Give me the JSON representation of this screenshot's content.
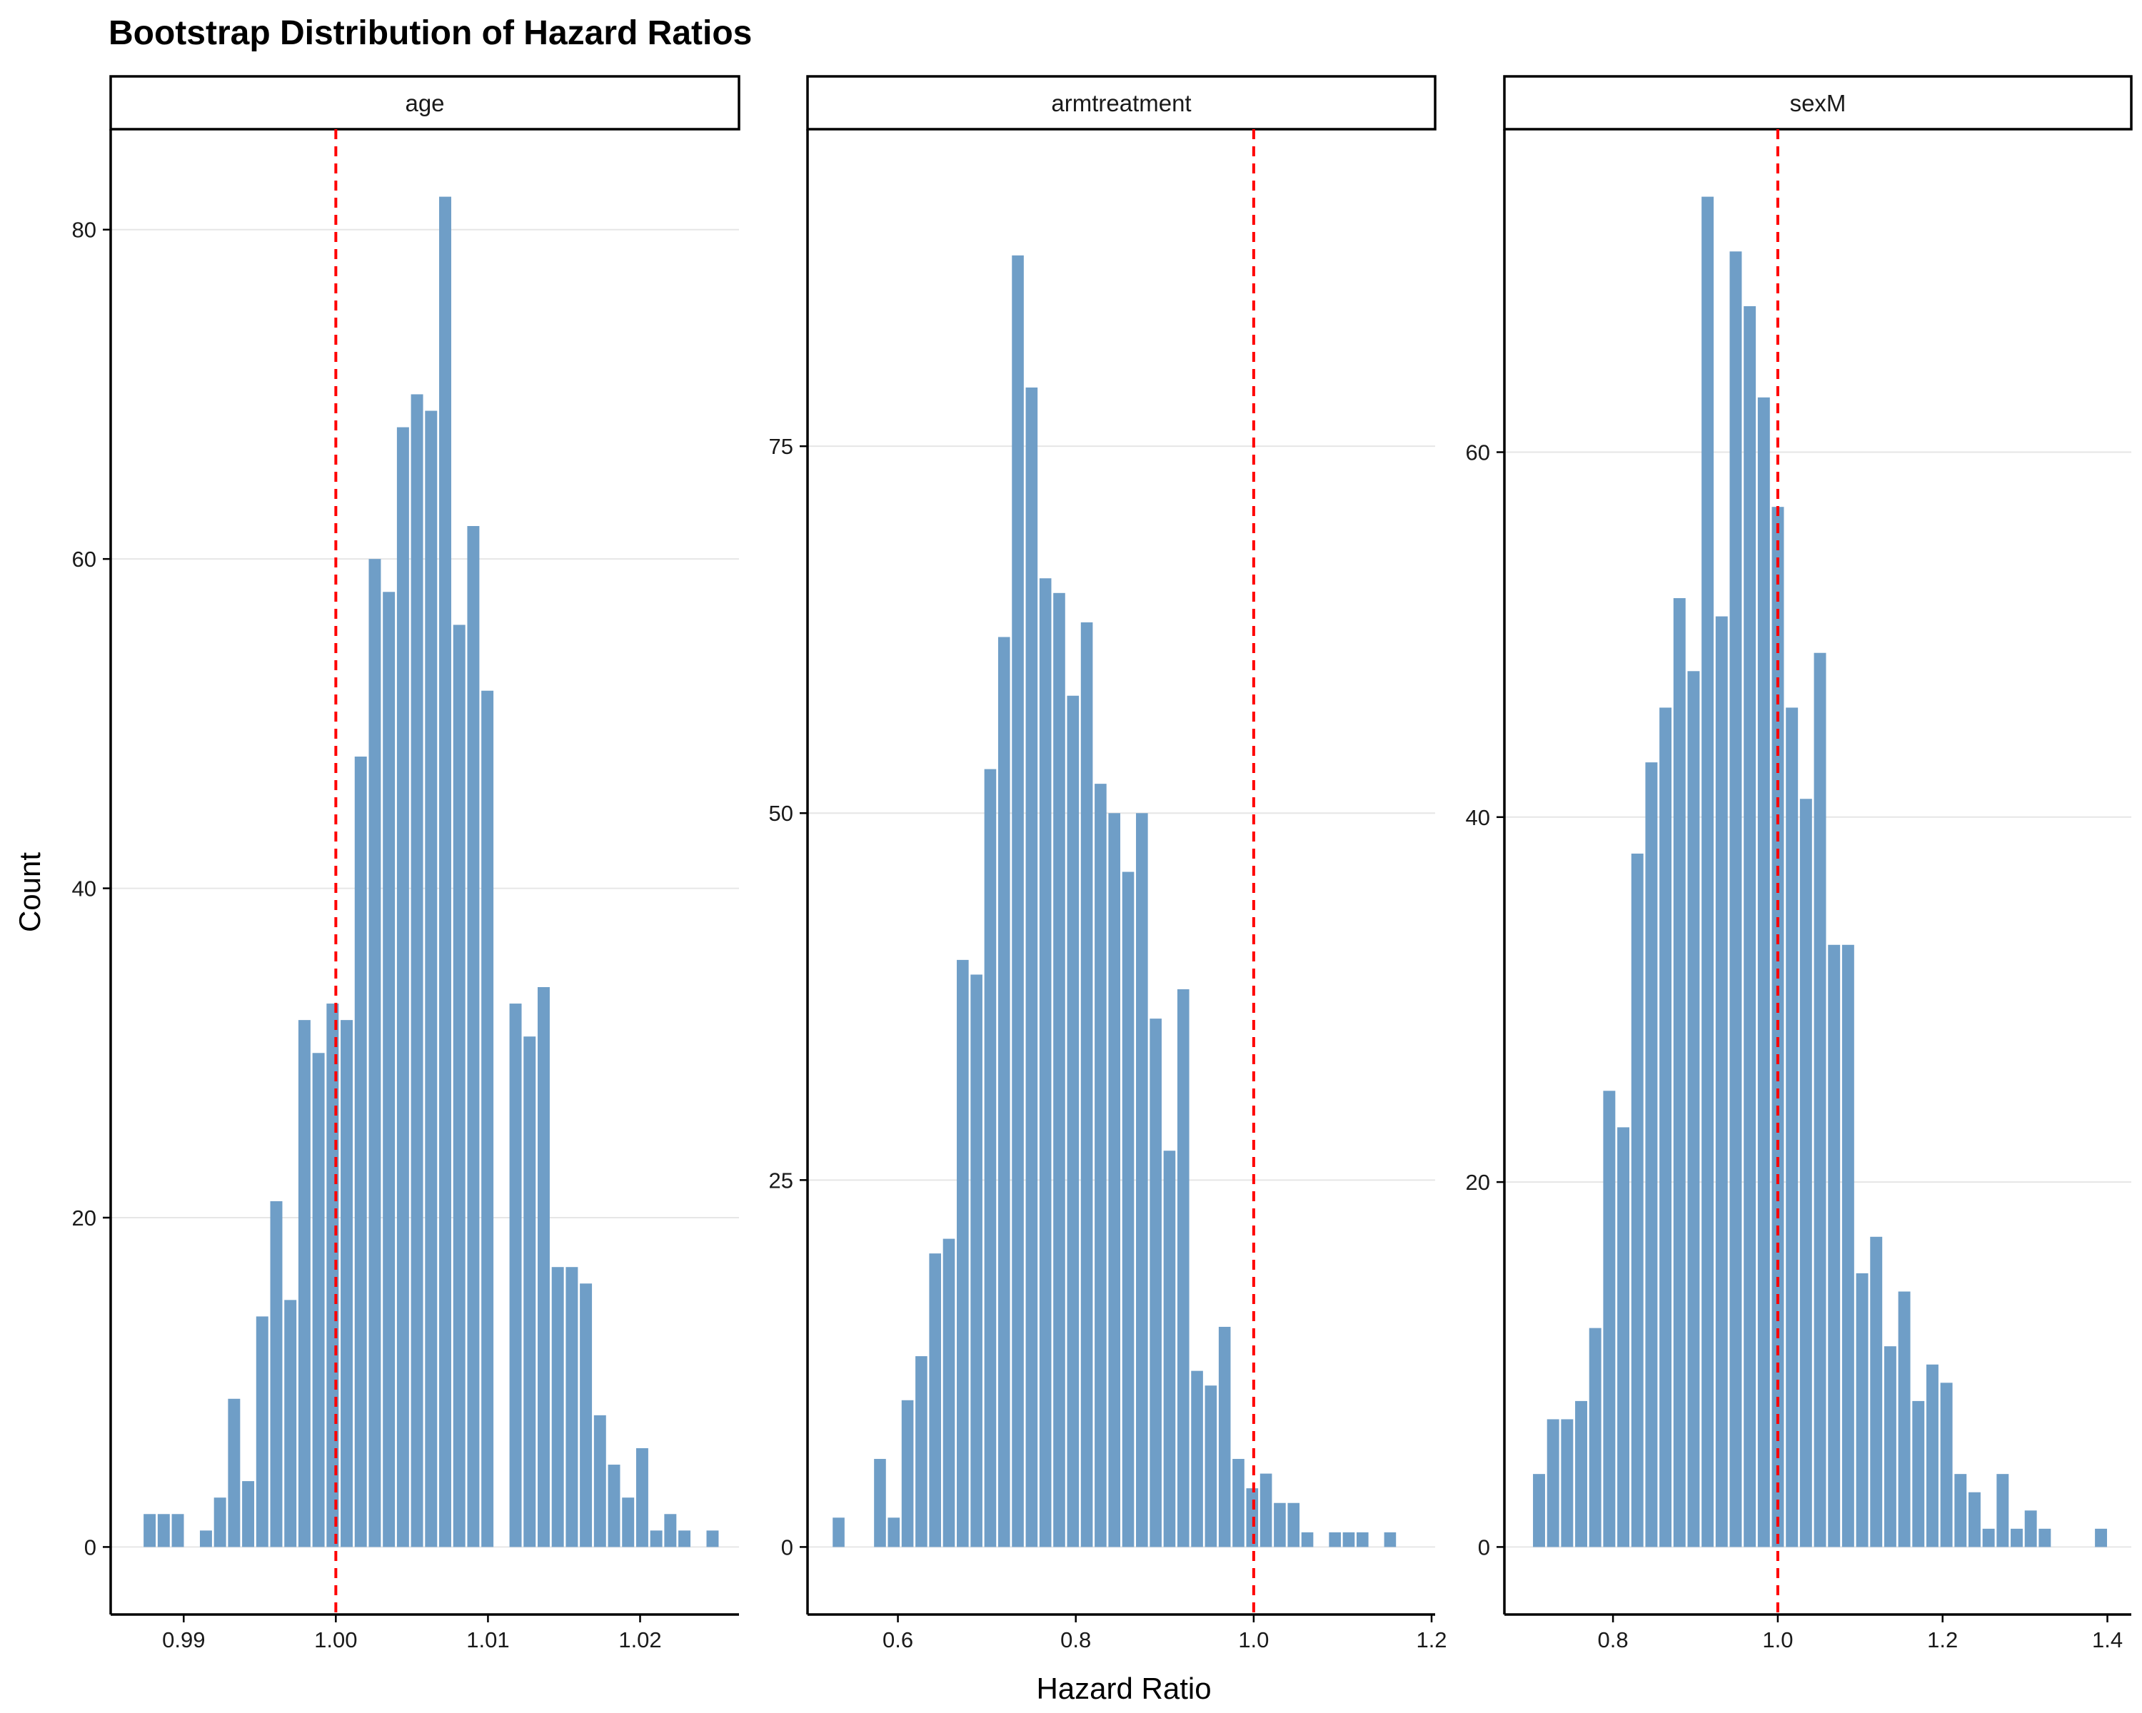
{
  "chart_data": {
    "type": "bar",
    "title": "Bootstrap Distribution of Hazard Ratios",
    "xlabel": "Hazard Ratio",
    "ylabel": "Count",
    "bar_color": "#6f9ec7",
    "reference_line": {
      "x": 1.0,
      "color": "#ff0000",
      "style": "dashed"
    },
    "panels": [
      {
        "name": "age",
        "xlim": [
          0.9852,
          1.0265
        ],
        "ylim": [
          -4.1,
          86.1
        ],
        "xticks": [
          0.99,
          1.0,
          1.01,
          1.02
        ],
        "xtick_labels": [
          "0.99",
          "1.00",
          "1.01",
          "1.02"
        ],
        "yticks": [
          0,
          20,
          40,
          60,
          80
        ],
        "ytick_labels": [
          "0",
          "20",
          "40",
          "60",
          "80"
        ],
        "bin_start": 0.9873,
        "bin_width": 0.000925,
        "values": [
          2,
          2,
          2,
          0,
          1,
          3,
          9,
          4,
          14,
          21,
          15,
          32,
          30,
          33,
          32,
          48,
          60,
          58,
          68,
          70,
          69,
          82,
          56,
          62,
          52,
          0,
          33,
          31,
          34,
          17,
          17,
          16,
          8,
          5,
          3,
          6,
          1,
          2,
          1,
          0,
          1
        ]
      },
      {
        "name": "armtreatment",
        "xlim": [
          0.4984,
          1.204
        ],
        "ylim": [
          -4.6,
          96.6
        ],
        "xticks": [
          0.6,
          0.8,
          1.0,
          1.2
        ],
        "xtick_labels": [
          "0.6",
          "0.8",
          "1.0",
          "1.2"
        ],
        "yticks": [
          0,
          25,
          50,
          75
        ],
        "ytick_labels": [
          "0",
          "25",
          "50",
          "75"
        ],
        "bin_start": 0.5256,
        "bin_width": 0.0155,
        "values": [
          2,
          0,
          0,
          6,
          2,
          10,
          13,
          20,
          21,
          40,
          39,
          53,
          62,
          88,
          79,
          66,
          65,
          58,
          63,
          52,
          50,
          46,
          50,
          36,
          27,
          38,
          12,
          11,
          15,
          6,
          4,
          5,
          3,
          3,
          1,
          0,
          1,
          1,
          1,
          0,
          1
        ]
      },
      {
        "name": "sexM",
        "xlim": [
          0.6682,
          1.429
        ],
        "ylim": [
          -3.7,
          77.7
        ],
        "xticks": [
          0.8,
          1.0,
          1.2,
          1.4
        ],
        "xtick_labels": [
          "0.8",
          "1.0",
          "1.2",
          "1.4"
        ],
        "yticks": [
          0,
          20,
          40,
          60
        ],
        "ytick_labels": [
          "0",
          "20",
          "40",
          "60"
        ],
        "bin_start": 0.7017,
        "bin_width": 0.01705,
        "values": [
          4,
          7,
          7,
          8,
          12,
          25,
          23,
          38,
          43,
          46,
          52,
          48,
          74,
          51,
          71,
          68,
          63,
          57,
          46,
          41,
          49,
          33,
          33,
          15,
          17,
          11,
          14,
          8,
          10,
          9,
          4,
          3,
          1,
          4,
          1,
          2,
          1,
          0,
          0,
          0,
          1
        ]
      }
    ]
  }
}
